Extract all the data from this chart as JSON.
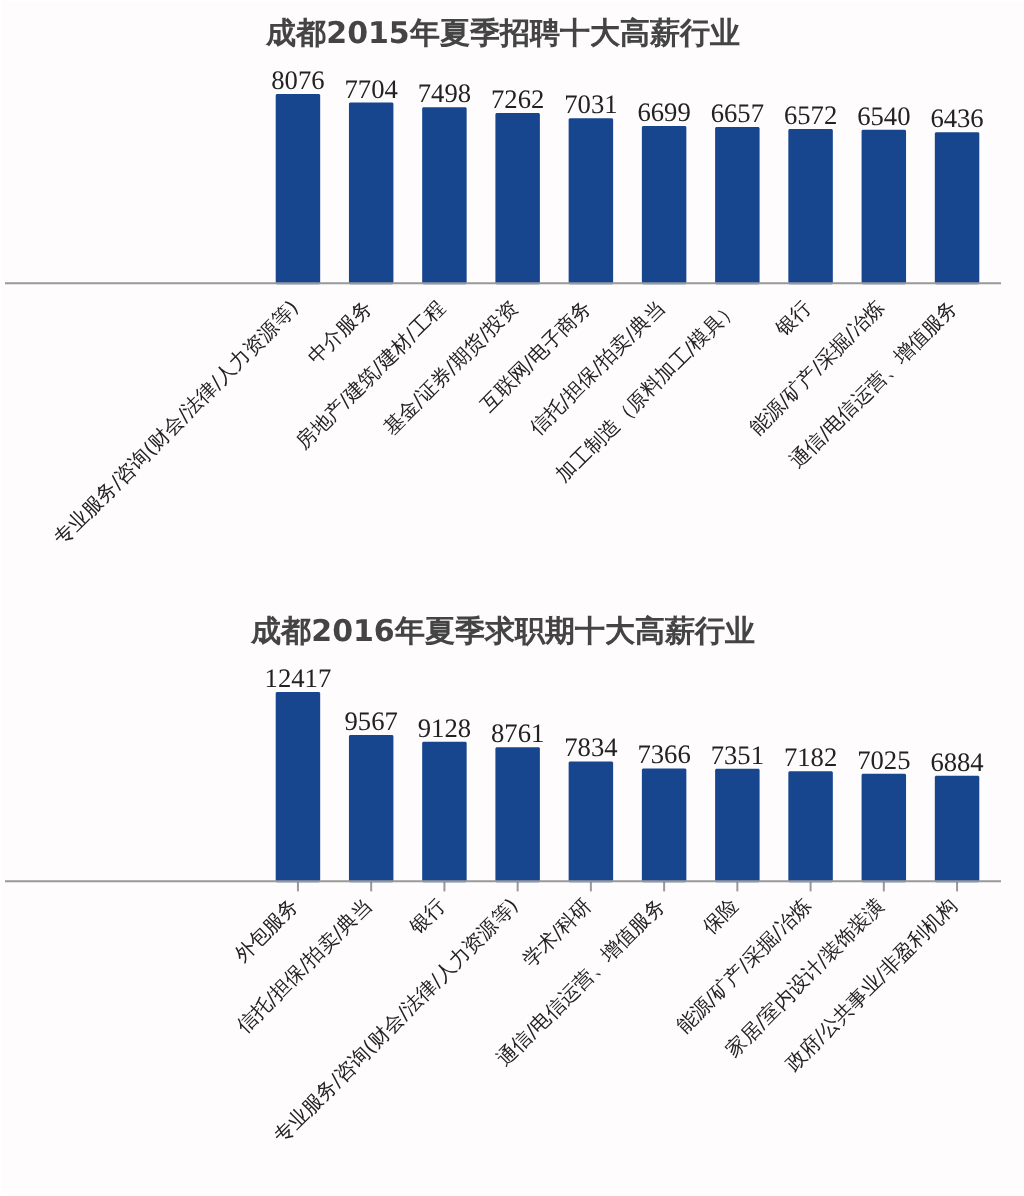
{
  "chart_data": [
    {
      "type": "bar",
      "title": "成都2015年夏季招聘十大高薪行业",
      "categories": [
        "专业服务/咨询(财会/法律/人力资源等)",
        "中介服务",
        "房地产/建筑/建材/工程",
        "基金/证券/期货/投资",
        "互联网/电子商务",
        "信托/担保/拍卖/典当",
        "加工制造（原料加工/模具）",
        "银行",
        "能源/矿产/采掘/冶炼",
        "通信/电信运营、增值服务"
      ],
      "values": [
        8076,
        7704,
        7498,
        7262,
        7031,
        6699,
        6657,
        6572,
        6540,
        6436
      ],
      "color": "#17468f",
      "data_labels": true,
      "grid": false
    },
    {
      "type": "bar",
      "title": "成都2016年夏季求职期十大高薪行业",
      "categories": [
        "外包服务",
        "信托/担保/拍卖/典当",
        "银行",
        "专业服务/咨询(财会/法律/人力资源等)",
        "学术/科研",
        "通信/电信运营、增值服务",
        "保险",
        "能源/矿产/采掘/冶炼",
        "家居/室内设计/装饰装潢",
        "政府/公共事业/非盈利机构"
      ],
      "values": [
        12417,
        9567,
        9128,
        8761,
        7834,
        7366,
        7351,
        7182,
        7025,
        6884
      ],
      "color": "#17468f",
      "data_labels": true,
      "grid": false
    }
  ]
}
